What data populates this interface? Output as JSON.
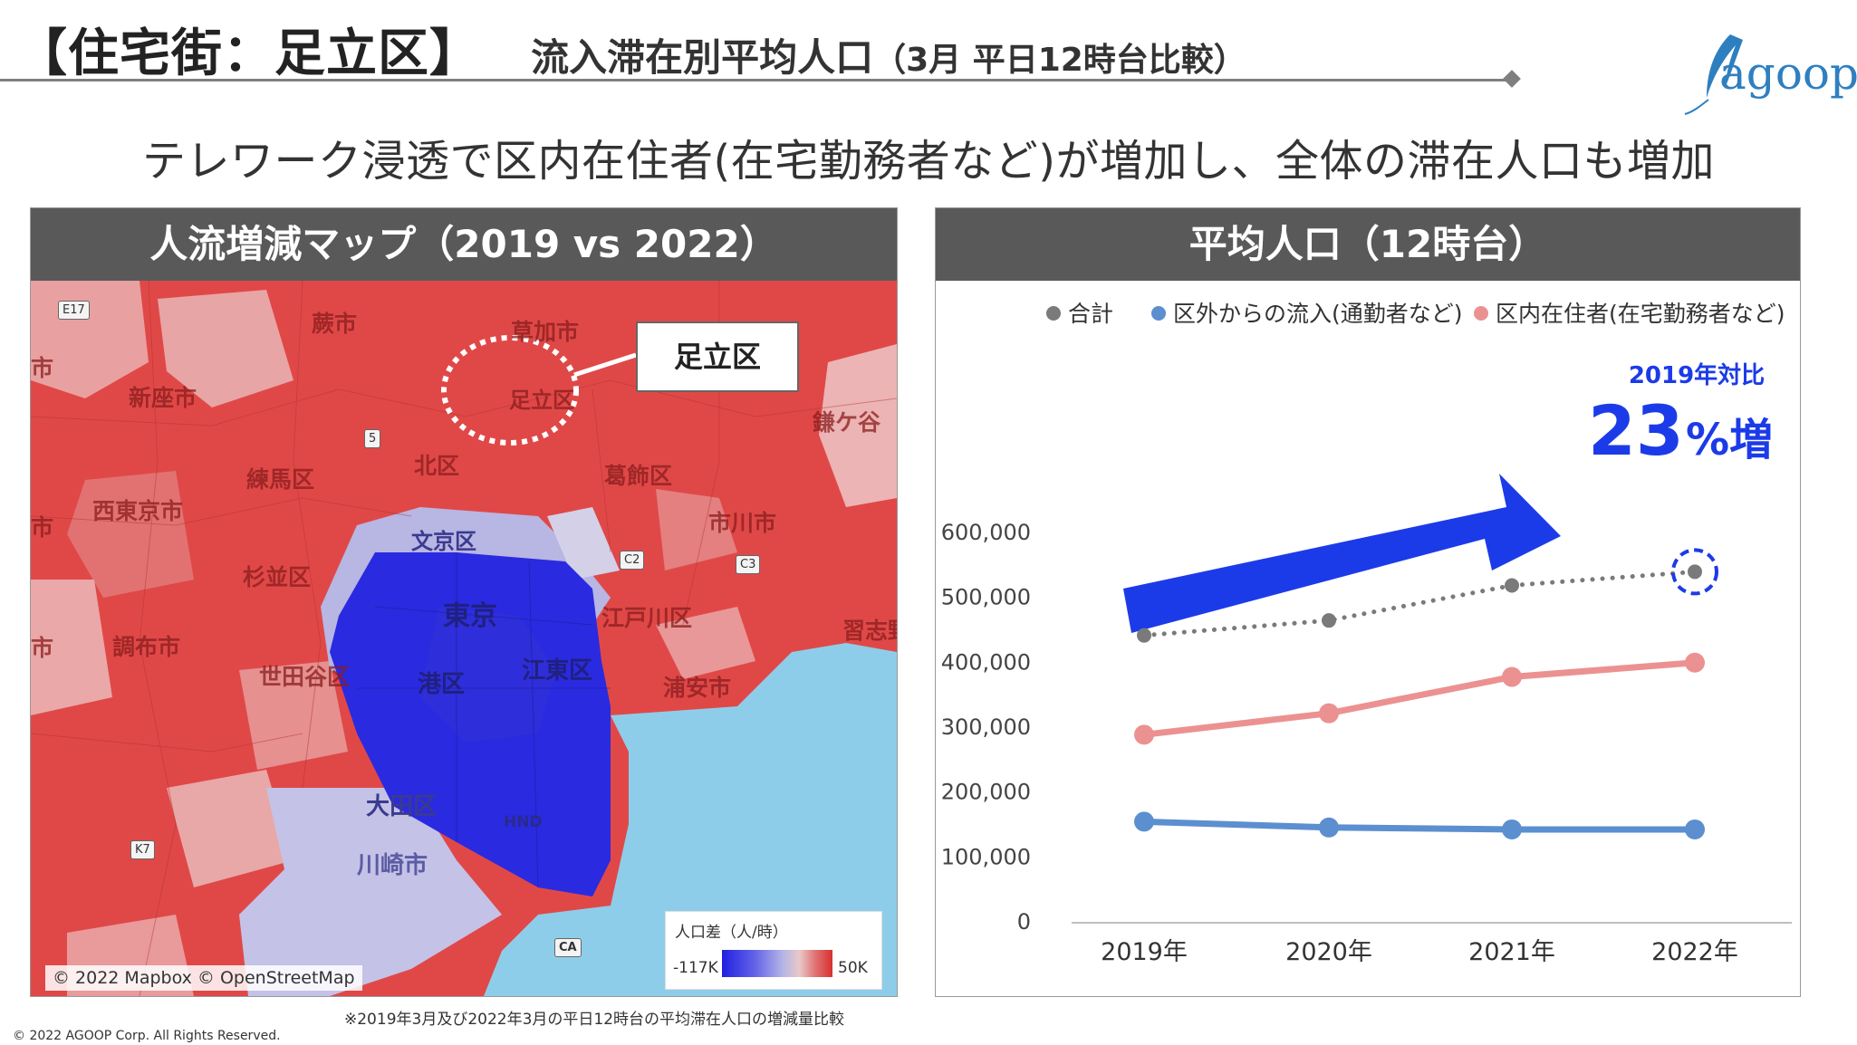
{
  "header": {
    "title_main": "【住宅街：足立区】",
    "title_sub": "流入滞在別平均人口",
    "title_paren": "（3月 平日12時台比較）"
  },
  "logo": {
    "text": "agoop"
  },
  "headline": "テレワーク浸透で区内在住者(在宅勤務者など)が増加し、全体の滞在人口も増加",
  "map_panel": {
    "title": "人流増減マップ（2019 vs 2022）",
    "callout": "足立区",
    "highlight_label": "足立区",
    "labels": [
      {
        "text": "草加市",
        "style": "red"
      },
      {
        "text": "蕨市",
        "style": "red"
      },
      {
        "text": "新座市",
        "style": "red"
      },
      {
        "text": "鎌ケ谷",
        "style": "red"
      },
      {
        "text": "練馬区",
        "style": "red"
      },
      {
        "text": "北区",
        "style": "red"
      },
      {
        "text": "葛飾区",
        "style": "red"
      },
      {
        "text": "西東京市",
        "style": "red"
      },
      {
        "text": "市川市",
        "style": "red"
      },
      {
        "text": "文京区",
        "style": "blue"
      },
      {
        "text": "杉並区",
        "style": "red"
      },
      {
        "text": "東京",
        "style": "blue"
      },
      {
        "text": "江戸川区",
        "style": "red"
      },
      {
        "text": "習志野",
        "style": "red"
      },
      {
        "text": "調布市",
        "style": "red"
      },
      {
        "text": "世田谷区",
        "style": "red"
      },
      {
        "text": "港区",
        "style": "blue"
      },
      {
        "text": "江東区",
        "style": "blue"
      },
      {
        "text": "浦安市",
        "style": "red"
      },
      {
        "text": "大田区",
        "style": "blue"
      },
      {
        "text": "川崎市",
        "style": "blue"
      },
      {
        "text": "市",
        "style": "red"
      },
      {
        "text": "市",
        "style": "red"
      },
      {
        "text": "市",
        "style": "red"
      }
    ],
    "roads": [
      "E17",
      "5",
      "C2",
      "C3",
      "K7",
      "CA"
    ],
    "airport": "HND",
    "attribution": "© 2022 Mapbox © OpenStreetMap",
    "legend": {
      "title": "人口差（人/時）",
      "min": "-117K",
      "max": "50K"
    }
  },
  "chart_panel": {
    "title": "平均人口（12時台）",
    "annotation_top": "2019年対比",
    "annotation_value": "23",
    "annotation_unit": "%増"
  },
  "chart_data": {
    "type": "line",
    "categories": [
      "2019年",
      "2020年",
      "2021年",
      "2022年"
    ],
    "series": [
      {
        "name": "合計",
        "values": [
          440000,
          463000,
          517000,
          538000
        ],
        "color": "#7a7a7a",
        "style": "dotted"
      },
      {
        "name": "区外からの流入(通勤者など)",
        "values": [
          153000,
          144000,
          141000,
          141000
        ],
        "color": "#5b8fcf",
        "style": "solid"
      },
      {
        "name": "区内在住者(在宅勤務者など)",
        "values": [
          287000,
          320000,
          376000,
          398000
        ],
        "color": "#ec9191",
        "style": "solid"
      }
    ],
    "y_ticks": [
      "0",
      "100,000",
      "200,000",
      "300,000",
      "400,000",
      "500,000",
      "600,000"
    ],
    "ylim": [
      0,
      600000
    ],
    "grid": false,
    "legend_position": "top"
  },
  "footnote": "※2019年3月及び2022年3月の平日12時台の平均滞在人口の増減量比較",
  "copyright": "© 2022 AGOOP Corp. All Rights Reserved.",
  "colors": {
    "arrow": "#1c3be8",
    "annotation": "#1c3be8",
    "header_panel": "#595959",
    "map_increase": "#e04848",
    "map_decrease": "#2a2ae0",
    "water": "#8ecde9"
  }
}
